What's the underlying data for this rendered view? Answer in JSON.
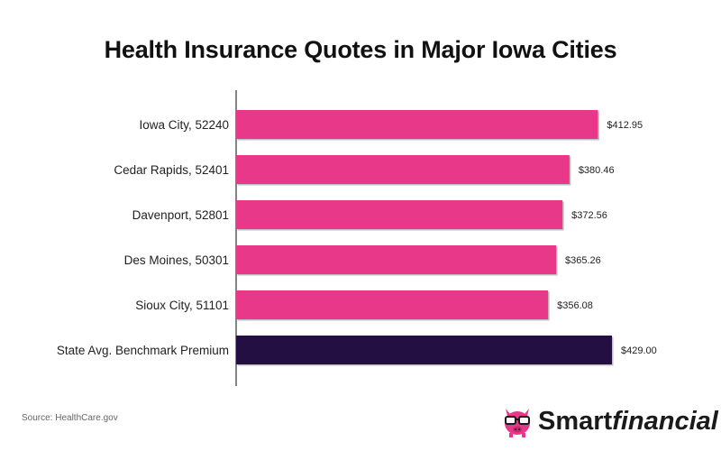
{
  "title": "Health Insurance Quotes in Major Iowa Cities",
  "source": "Source: HealthCare.gov",
  "brand": {
    "bold": "Smart",
    "italic": "financial"
  },
  "colors": {
    "bar": "#E8388A",
    "highlight": "#230F42",
    "axis": "#333333",
    "text": "#222222"
  },
  "chart_data": {
    "type": "bar",
    "orientation": "horizontal",
    "title": "Health Insurance Quotes in Major Iowa Cities",
    "categories": [
      "Iowa City, 52240",
      "Cedar Rapids, 52401",
      "Davenport, 52801",
      "Des Moines, 50301",
      "Sioux City, 51101",
      "State Avg. Benchmark Premium"
    ],
    "values": [
      412.95,
      380.46,
      372.56,
      365.26,
      356.08,
      429.0
    ],
    "labels": [
      "$412.95",
      "$380.46",
      "$372.56",
      "$365.26",
      "$356.08",
      "$429.00"
    ],
    "highlight_index": 5,
    "xlim": [
      0,
      429
    ],
    "xlabel": "",
    "ylabel": "",
    "grid": false
  }
}
